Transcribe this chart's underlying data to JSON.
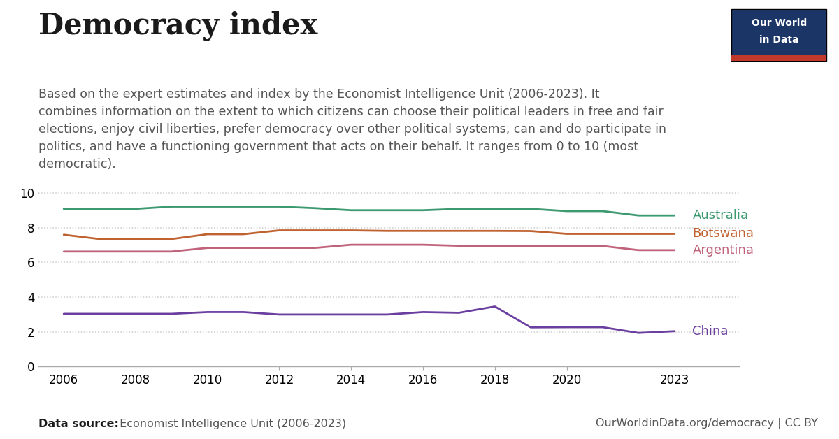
{
  "title": "Democracy index",
  "subtitle_line1": "Based on the expert estimates and index by the Economist Intelligence Unit (2006-2023). It",
  "subtitle_line2": "combines information on the extent to which citizens can choose their political leaders in free and fair",
  "subtitle_line3": "elections, enjoy civil liberties, prefer democracy over other political systems, can and do participate in",
  "subtitle_line4": "politics, and have a functioning government that acts on their behalf. It ranges from 0 to 10 (most",
  "subtitle_line5": "democratic).",
  "footer_source_bold": "Data source:",
  "footer_source_rest": " Economist Intelligence Unit (2006-2023)",
  "footer_right": "OurWorldinData.org/democracy | CC BY",
  "logo_line1": "Our World",
  "logo_line2": "in Data",
  "years": [
    2006,
    2007,
    2008,
    2009,
    2010,
    2011,
    2012,
    2013,
    2014,
    2015,
    2016,
    2017,
    2018,
    2019,
    2020,
    2021,
    2022,
    2023
  ],
  "series": {
    "Australia": {
      "color": "#3d9970",
      "values": [
        9.09,
        9.09,
        9.09,
        9.22,
        9.22,
        9.22,
        9.22,
        9.13,
        9.01,
        9.01,
        9.01,
        9.09,
        9.09,
        9.09,
        8.96,
        8.96,
        8.71,
        8.71
      ]
    },
    "Botswana": {
      "color": "#c0622f",
      "values": [
        7.6,
        7.35,
        7.35,
        7.35,
        7.63,
        7.63,
        7.85,
        7.85,
        7.85,
        7.82,
        7.82,
        7.82,
        7.82,
        7.81,
        7.65,
        7.65,
        7.65,
        7.65
      ]
    },
    "Argentina": {
      "color": "#c0637a",
      "values": [
        6.63,
        6.63,
        6.63,
        6.63,
        6.84,
        6.84,
        6.84,
        6.84,
        7.02,
        7.02,
        7.02,
        6.96,
        6.96,
        6.96,
        6.95,
        6.95,
        6.71,
        6.71
      ]
    },
    "China": {
      "color": "#6b3fa0",
      "values": [
        3.04,
        3.04,
        3.04,
        3.04,
        3.14,
        3.14,
        3.0,
        3.0,
        3.0,
        3.0,
        3.14,
        3.1,
        3.46,
        2.26,
        2.27,
        2.27,
        1.94,
        2.04
      ]
    }
  },
  "ylim": [
    0,
    10.5
  ],
  "yticks": [
    0,
    2,
    4,
    6,
    8,
    10
  ],
  "xticks": [
    2006,
    2008,
    2010,
    2012,
    2014,
    2016,
    2018,
    2020,
    2023
  ],
  "background_color": "#ffffff",
  "grid_color": "#cccccc",
  "title_fontsize": 30,
  "subtitle_fontsize": 12.5,
  "axis_fontsize": 12,
  "label_fontsize": 13,
  "footer_fontsize": 11.5,
  "logo_bg_color": "#1a3566",
  "logo_red_color": "#c0392b",
  "logo_text_color": "#ffffff",
  "title_color": "#1a1a1a",
  "subtitle_color": "#555555",
  "footer_color": "#555555",
  "footer_bold_color": "#1a1a1a"
}
